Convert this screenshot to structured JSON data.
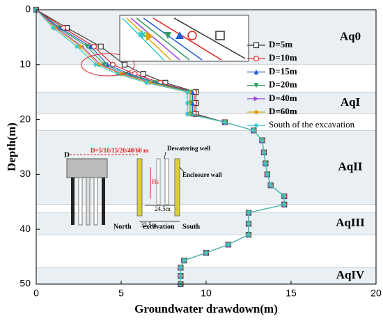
{
  "chart_data": {
    "type": "line",
    "x_label": "Groundwater drawdown(m)",
    "y_label": "Depth(m)",
    "xlim": [
      0,
      20
    ],
    "xticks": [
      0,
      5,
      10,
      15,
      20
    ],
    "ylim": [
      0,
      50
    ],
    "yticks": [
      0,
      10,
      20,
      30,
      40,
      50
    ],
    "legend": "upper right",
    "y": [
      0,
      3.3,
      6.7,
      10,
      11.7,
      13.3,
      15,
      17,
      19,
      20.5,
      22,
      23.8,
      26,
      28,
      30,
      32,
      34,
      35.5,
      37,
      39,
      41,
      42.8,
      44.3,
      45.7,
      47,
      48.5,
      50
    ],
    "series": [
      {
        "name": "D=5m",
        "color": "#333333",
        "marker": "square",
        "values": [
          0,
          1.8,
          3.8,
          5.2,
          6.3,
          7.6,
          9.4,
          9.4,
          9.4,
          11.1,
          12.8,
          13.3,
          13.4,
          13.5,
          13.6,
          13.8,
          14.6,
          14.6,
          12.5,
          12.5,
          12.5,
          11.3,
          10.0,
          8.7,
          8.5,
          8.5,
          8.5
        ]
      },
      {
        "name": "D=10m",
        "color": "#e02020",
        "marker": "circle",
        "values": [
          0,
          1.6,
          3.4,
          4.5,
          5.8,
          7.3,
          9.3,
          9.3,
          9.3,
          11.1,
          12.8,
          13.3,
          13.4,
          13.5,
          13.6,
          13.8,
          14.6,
          14.6,
          12.5,
          12.5,
          12.5,
          11.3,
          10.0,
          8.7,
          8.5,
          8.5,
          8.5
        ]
      },
      {
        "name": "D=15m",
        "color": "#1f5fd0",
        "marker": "triangle",
        "values": [
          0,
          1.4,
          3.2,
          4.2,
          5.5,
          7.1,
          9.2,
          9.2,
          9.2,
          11.1,
          12.8,
          13.3,
          13.4,
          13.5,
          13.6,
          13.8,
          14.6,
          14.6,
          12.5,
          12.5,
          12.5,
          11.3,
          10.0,
          8.7,
          8.5,
          8.5,
          8.5
        ]
      },
      {
        "name": "D=20m",
        "color": "#2e9e5e",
        "marker": "triangle-down",
        "values": [
          0,
          1.3,
          3.0,
          4.0,
          5.3,
          7.0,
          9.1,
          9.1,
          9.1,
          11.1,
          12.8,
          13.3,
          13.4,
          13.5,
          13.6,
          13.8,
          14.6,
          14.6,
          12.5,
          12.5,
          12.5,
          11.3,
          10.0,
          8.7,
          8.5,
          8.5,
          8.5
        ]
      },
      {
        "name": "D=40m",
        "color": "#a040e0",
        "marker": "triangle-right",
        "values": [
          0,
          1.2,
          2.7,
          3.8,
          5.1,
          6.8,
          9.0,
          9.0,
          9.0,
          11.1,
          12.8,
          13.3,
          13.4,
          13.5,
          13.6,
          13.8,
          14.6,
          14.6,
          12.5,
          12.5,
          12.5,
          11.3,
          10.0,
          8.7,
          8.5,
          8.5,
          8.5
        ]
      },
      {
        "name": "D=60m",
        "color": "#e0a000",
        "marker": "diamond",
        "values": [
          0,
          1.1,
          2.6,
          3.7,
          5.0,
          6.7,
          9.0,
          9.0,
          9.0,
          11.1,
          12.8,
          13.3,
          13.4,
          13.5,
          13.6,
          13.8,
          14.6,
          14.6,
          12.5,
          12.5,
          12.5,
          11.3,
          10.0,
          8.7,
          8.5,
          8.5,
          8.5
        ]
      },
      {
        "name": "South of the excavation",
        "color": "#30c8c8",
        "marker": "star",
        "values": [
          0,
          1.0,
          2.4,
          3.5,
          4.8,
          6.5,
          8.9,
          8.9,
          8.9,
          11.1,
          12.8,
          13.3,
          13.4,
          13.5,
          13.6,
          13.8,
          14.6,
          14.6,
          12.5,
          12.5,
          12.5,
          11.3,
          10.0,
          8.7,
          8.5,
          8.5,
          8.5
        ]
      }
    ],
    "layers": [
      {
        "label": "Aq0",
        "top": 0,
        "bottom": 10
      },
      {
        "label": "AqI",
        "top": 15,
        "bottom": 19
      },
      {
        "label": "AqII",
        "top": 22,
        "bottom": 35.5
      },
      {
        "label": "AqIII",
        "top": 37,
        "bottom": 41
      },
      {
        "label": "AqIV",
        "top": 47,
        "bottom": 50
      }
    ],
    "annotations": [
      "D",
      "D=5/10/15/20/40/60 m",
      "Dewatering well",
      "Enclosure wall",
      "Hs",
      "24.5m",
      "32.5m",
      "North",
      "excavation",
      "South"
    ]
  }
}
